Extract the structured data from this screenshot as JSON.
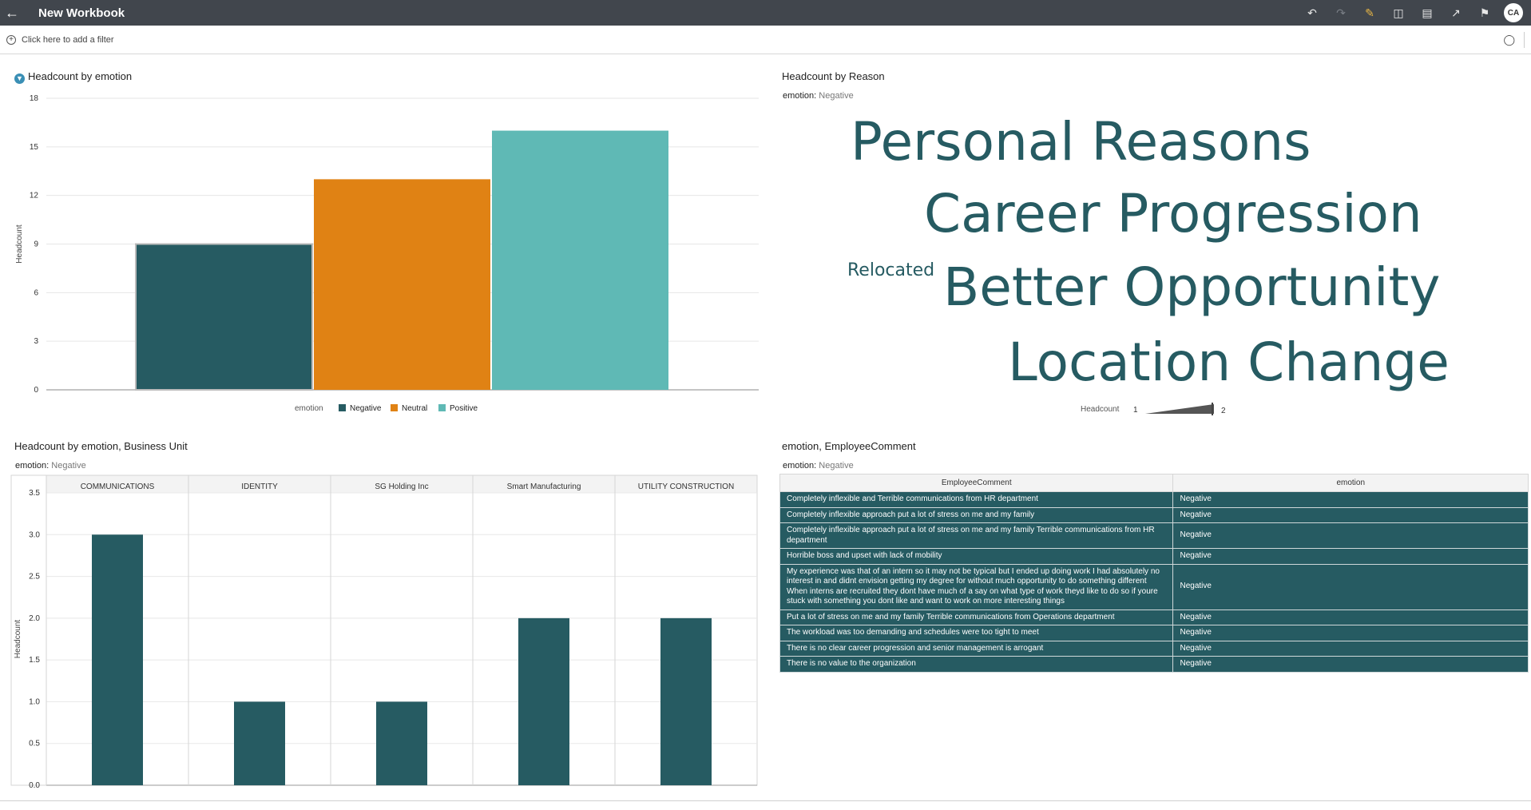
{
  "app": {
    "title": "New Workbook",
    "avatar": "CA",
    "tools": [
      "undo-icon",
      "redo-icon",
      "edit-icon",
      "data-icon",
      "comment-icon",
      "export-icon",
      "bookmark-icon"
    ]
  },
  "filterbar": {
    "add_filter": "Click here to add a filter"
  },
  "viz1": {
    "title": "Headcount by emotion",
    "chart_data": {
      "type": "bar",
      "title": "Headcount by emotion",
      "categories": [
        "Negative",
        "Neutral",
        "Positive"
      ],
      "values": [
        9,
        13,
        16
      ],
      "colors": [
        "#265b62",
        "#e08214",
        "#5fb9b5"
      ],
      "ylabel": "Headcount",
      "ylim": [
        0,
        18
      ],
      "yticks": [
        "0",
        "3",
        "6",
        "9",
        "12",
        "15",
        "18"
      ],
      "legend_title": "emotion",
      "legend": [
        "Negative",
        "Neutral",
        "Positive"
      ],
      "legend_placement": "bottom"
    }
  },
  "viz2": {
    "title": "Headcount by Reason",
    "filter_label": "emotion:",
    "filter_value": "Negative",
    "words": [
      {
        "text": "Personal Reasons",
        "weight": 2
      },
      {
        "text": "Career Progression",
        "weight": 2
      },
      {
        "text": "Relocated",
        "weight": 1
      },
      {
        "text": "Better Opportunity",
        "weight": 2
      },
      {
        "text": "Location Change",
        "weight": 2
      }
    ],
    "size_legend": {
      "label": "Headcount",
      "min": "1",
      "max": "2"
    }
  },
  "viz3": {
    "title": "Headcount by emotion, Business Unit",
    "filter_label": "emotion:",
    "filter_value": "Negative",
    "chart_data": {
      "type": "bar",
      "title": "Headcount by emotion, Business Unit",
      "categories": [
        "COMMUNICATIONS",
        "IDENTITY",
        "SG Holding Inc",
        "Smart Manufacturing",
        "UTILITY CONSTRUCTION"
      ],
      "values": [
        3,
        1,
        1,
        2,
        2
      ],
      "color": "#265b62",
      "ylabel": "Headcount",
      "ylim": [
        0,
        3.5
      ],
      "yticks": [
        "0.0",
        "0.5",
        "1.0",
        "1.5",
        "2.0",
        "2.5",
        "3.0",
        "3.5"
      ],
      "grid": true
    }
  },
  "viz4": {
    "title": "emotion, EmployeeComment",
    "filter_label": "emotion:",
    "filter_value": "Negative",
    "columns": [
      "EmployeeComment",
      "emotion"
    ],
    "rows": [
      [
        "Completely inflexible and Terrible communications from HR department",
        "Negative"
      ],
      [
        "Completely inflexible approach put a lot of stress on me and my family",
        "Negative"
      ],
      [
        "Completely inflexible approach put a lot of stress on me and my family Terrible communications from HR department",
        "Negative"
      ],
      [
        "Horrible boss and upset with lack of mobility",
        "Negative"
      ],
      [
        "My experience was that of an intern so it may not be typical but I ended up doing work I had absolutely no interest in and didnt envision getting my degree for without much opportunity to do something different When interns are recruited they dont have much of a say on what type of work theyd like to do so if youre stuck with something you dont like and want to work on more interesting things",
        "Negative"
      ],
      [
        "Put a lot of stress on me and my family Terrible communications from Operations department",
        "Negative"
      ],
      [
        "The workload was too demanding and schedules were too tight to meet",
        "Negative"
      ],
      [
        "There is no clear career progression and senior management is arrogant",
        "Negative"
      ],
      [
        "There is no value to the organization",
        "Negative"
      ]
    ]
  }
}
